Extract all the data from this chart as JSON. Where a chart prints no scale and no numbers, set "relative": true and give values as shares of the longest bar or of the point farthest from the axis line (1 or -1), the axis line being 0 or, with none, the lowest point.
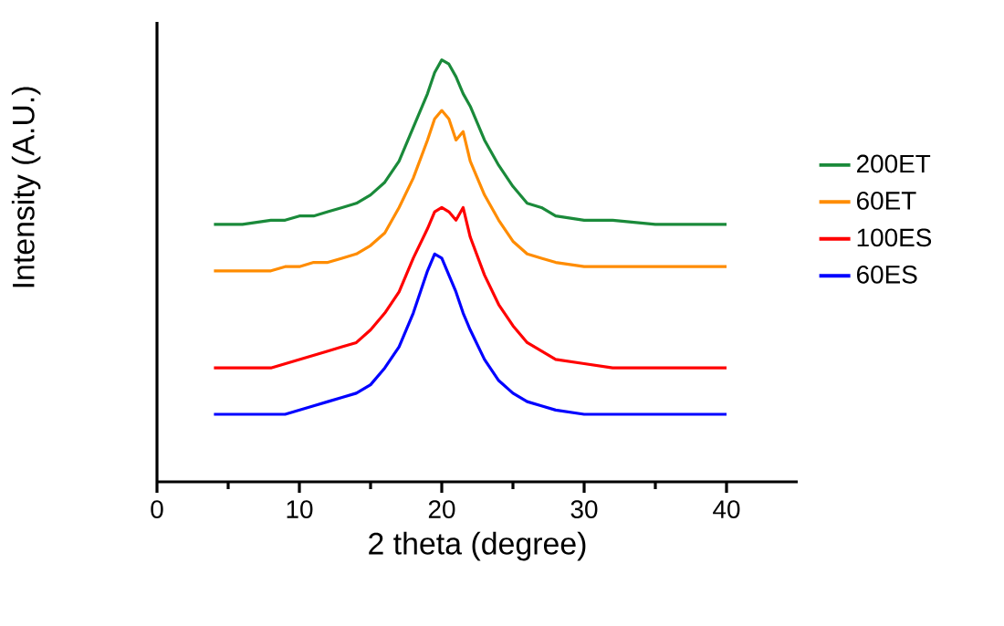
{
  "chart_data": {
    "type": "line",
    "xlabel": "2 theta (degree)",
    "ylabel": "Intensity (A.U.)",
    "relative": true,
    "xlim": [
      0,
      45
    ],
    "xticks": [
      0,
      10,
      20,
      30,
      40
    ],
    "tick_labels": "x",
    "legend": "right",
    "marker": "none",
    "line_style": "solid",
    "x": [
      4,
      6,
      8,
      9,
      10,
      11,
      12,
      13,
      14,
      15,
      16,
      17,
      18,
      19,
      19.5,
      20,
      20.5,
      21,
      21.5,
      22,
      23,
      24,
      25,
      26,
      27,
      28,
      30,
      32,
      35,
      38,
      40
    ],
    "series": [
      {
        "name": "200ET",
        "color": "#1a8a3a",
        "values": [
          0.61,
          0.61,
          0.62,
          0.62,
          0.63,
          0.63,
          0.64,
          0.65,
          0.66,
          0.68,
          0.71,
          0.76,
          0.84,
          0.92,
          0.97,
          1,
          0.99,
          0.96,
          0.92,
          0.89,
          0.81,
          0.75,
          0.7,
          0.66,
          0.65,
          0.63,
          0.62,
          0.62,
          0.61,
          0.61,
          0.61
        ]
      },
      {
        "name": "60ET",
        "color": "#ff8c00",
        "values": [
          0.5,
          0.5,
          0.5,
          0.51,
          0.51,
          0.52,
          0.52,
          0.53,
          0.54,
          0.56,
          0.59,
          0.65,
          0.72,
          0.81,
          0.86,
          0.88,
          0.86,
          0.81,
          0.83,
          0.76,
          0.68,
          0.62,
          0.57,
          0.54,
          0.53,
          0.52,
          0.51,
          0.51,
          0.51,
          0.51,
          0.51
        ]
      },
      {
        "name": "100ES",
        "color": "#ff0000",
        "values": [
          0.27,
          0.27,
          0.27,
          0.28,
          0.29,
          0.3,
          0.31,
          0.32,
          0.33,
          0.36,
          0.4,
          0.45,
          0.53,
          0.6,
          0.64,
          0.65,
          0.64,
          0.62,
          0.65,
          0.58,
          0.49,
          0.42,
          0.37,
          0.33,
          0.31,
          0.29,
          0.28,
          0.27,
          0.27,
          0.27,
          0.27
        ]
      },
      {
        "name": "60ES",
        "color": "#0000ff",
        "values": [
          0.16,
          0.16,
          0.16,
          0.16,
          0.17,
          0.18,
          0.19,
          0.2,
          0.21,
          0.23,
          0.27,
          0.32,
          0.4,
          0.5,
          0.54,
          0.53,
          0.49,
          0.45,
          0.4,
          0.36,
          0.29,
          0.24,
          0.21,
          0.19,
          0.18,
          0.17,
          0.16,
          0.16,
          0.16,
          0.16,
          0.16
        ]
      }
    ]
  }
}
